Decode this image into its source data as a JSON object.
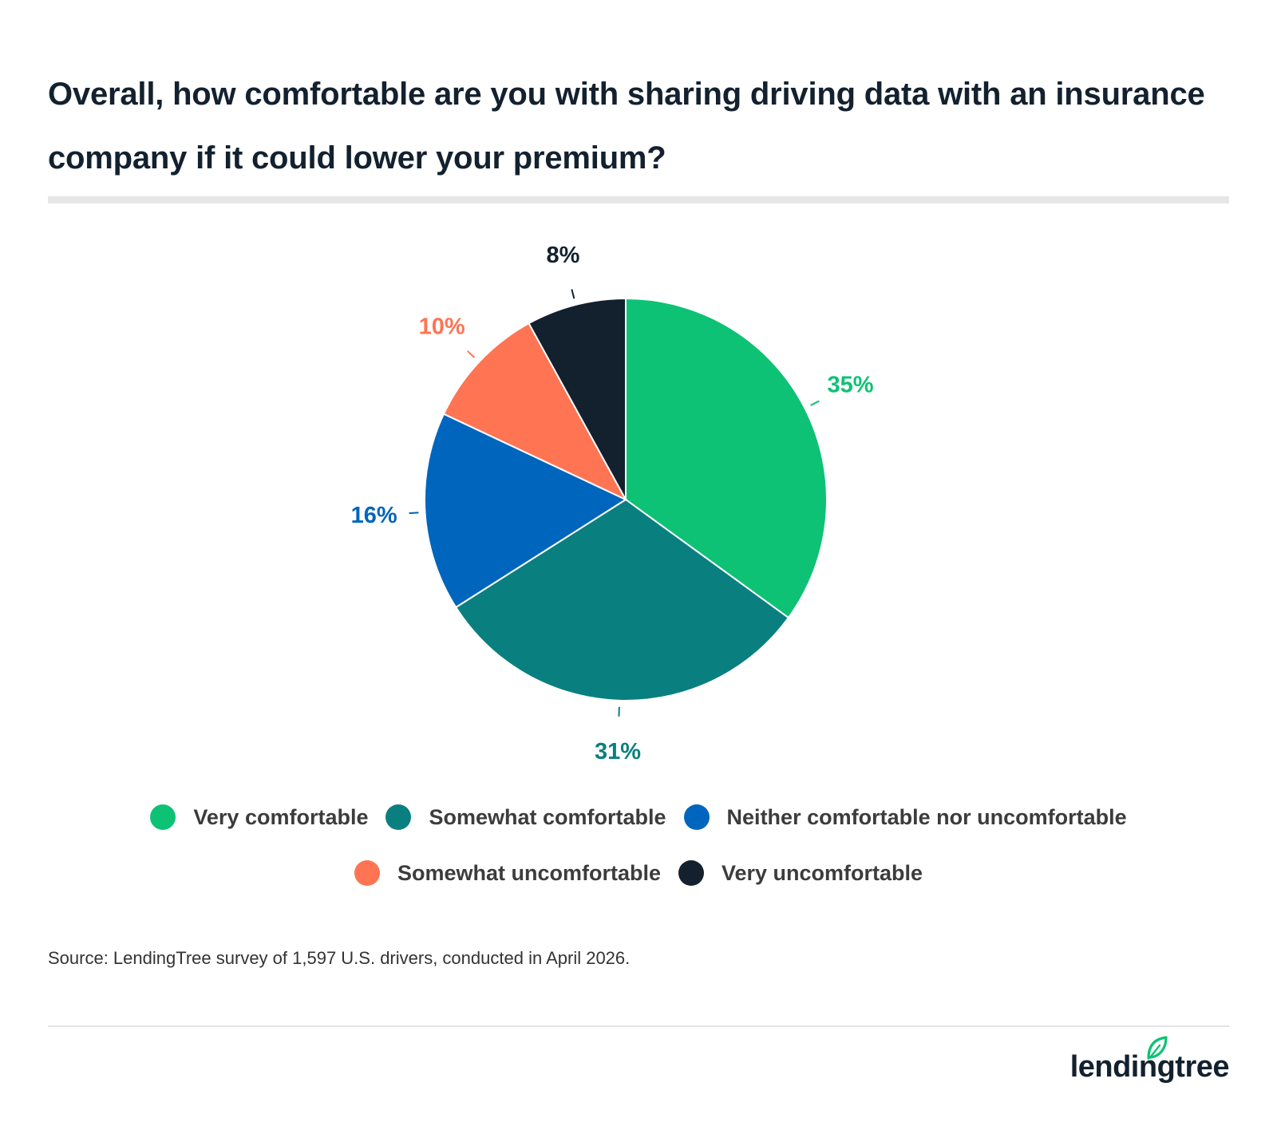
{
  "chart_data": {
    "type": "pie",
    "title": "Overall, how comfortable are you with sharing driving data with an insurance company if it could lower your premium?",
    "slices": [
      {
        "name": "Very comfortable",
        "value": 35,
        "label": "35%",
        "color": "#0dc274"
      },
      {
        "name": "Somewhat comfortable",
        "value": 31,
        "label": "31%",
        "color": "#0a7f80"
      },
      {
        "name": "Neither comfortable nor uncomfortable",
        "value": 16,
        "label": "16%",
        "color": "#0065bd"
      },
      {
        "name": "Somewhat uncomfortable",
        "value": 10,
        "label": "10%",
        "color": "#ff7453"
      },
      {
        "name": "Very uncomfortable",
        "value": 8,
        "label": "8%",
        "color": "#13212f"
      }
    ],
    "legend_placement": "bottom",
    "source": "Source: LendingTree survey of 1,597 U.S. drivers, conducted in April 2026."
  },
  "brand": {
    "logo_text": "lendingtree",
    "leaf_color": "#0dc274",
    "text_color": "#13212f"
  }
}
